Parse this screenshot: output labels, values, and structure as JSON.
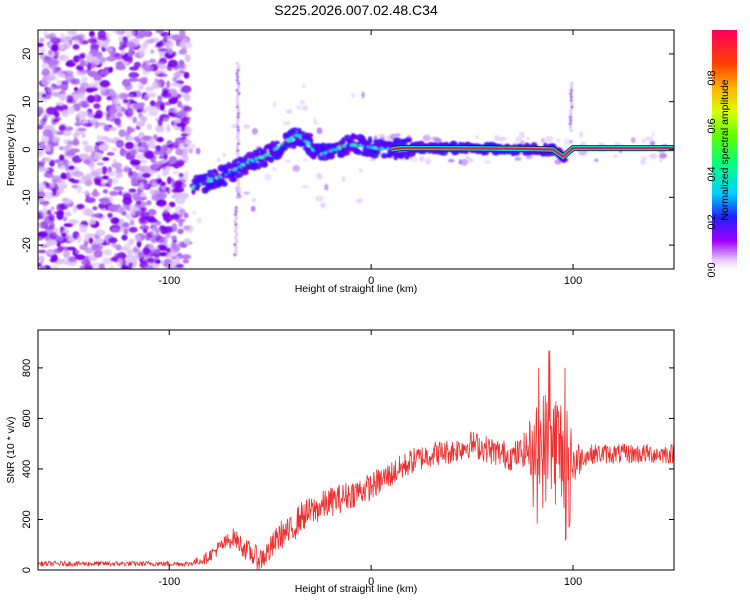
{
  "chart_data": [
    {
      "type": "heatmap",
      "title": "S225.2026.007.02.48.C34",
      "xlabel": "Height of straight line (km)",
      "ylabel": "Frequency (Hz)",
      "xlim": [
        -165,
        150
      ],
      "ylim": [
        -25,
        25
      ],
      "xticks": [
        -100,
        0,
        100
      ],
      "yticks": [
        -20,
        -10,
        0,
        10,
        20
      ],
      "colorbar": {
        "label": "Normalized spectral amplitude",
        "range": [
          0,
          1
        ],
        "ticks": [
          0.0,
          0.2,
          0.4,
          0.6,
          0.8
        ],
        "tick_labels": [
          "0.0",
          "0.2",
          "0.4",
          "0.6",
          "0.8"
        ]
      },
      "ridge": {
        "x": [
          -88,
          -80,
          -70,
          -60,
          -50,
          -40,
          -36,
          -32,
          -28,
          -24,
          -20,
          -15,
          -10,
          -5,
          0,
          5,
          10,
          15,
          30,
          60,
          80,
          90,
          95,
          100,
          150
        ],
        "y": [
          -8,
          -6.5,
          -5,
          -2.5,
          -1,
          2,
          3,
          1.8,
          0,
          -1,
          -0.5,
          0.5,
          1,
          0.8,
          0.5,
          0.2,
          0,
          0.3,
          0.3,
          0.2,
          0.1,
          0,
          -1.5,
          0.3,
          0.3
        ]
      }
    },
    {
      "type": "line",
      "xlabel": "Height of straight line (km)",
      "ylabel": "SNR (10 * v/v)",
      "xlim": [
        -165,
        150
      ],
      "ylim": [
        0,
        950
      ],
      "xticks": [
        -100,
        0,
        100
      ],
      "yticks": [
        0,
        200,
        400,
        600,
        800
      ],
      "color": "#ee3030",
      "trend": {
        "x": [
          -165,
          -90,
          -82,
          -75,
          -68,
          -62,
          -55,
          -50,
          -45,
          -40,
          -35,
          -30,
          -25,
          -20,
          -10,
          0,
          10,
          20,
          30,
          40,
          50,
          60,
          70,
          78,
          85,
          92,
          100,
          105,
          110,
          120,
          150
        ],
        "y": [
          25,
          25,
          45,
          90,
          130,
          80,
          40,
          80,
          140,
          150,
          210,
          230,
          250,
          270,
          300,
          330,
          380,
          430,
          460,
          470,
          500,
          470,
          450,
          480,
          480,
          490,
          420,
          450,
          460,
          460,
          460
        ]
      },
      "noise_amplitude": {
        "x": [
          -165,
          -90,
          -80,
          -60,
          -40,
          -20,
          0,
          40,
          75,
          80,
          85,
          95,
          100,
          105,
          150
        ],
        "y": [
          10,
          10,
          25,
          45,
          60,
          60,
          55,
          50,
          60,
          140,
          240,
          240,
          120,
          40,
          40
        ]
      }
    }
  ]
}
